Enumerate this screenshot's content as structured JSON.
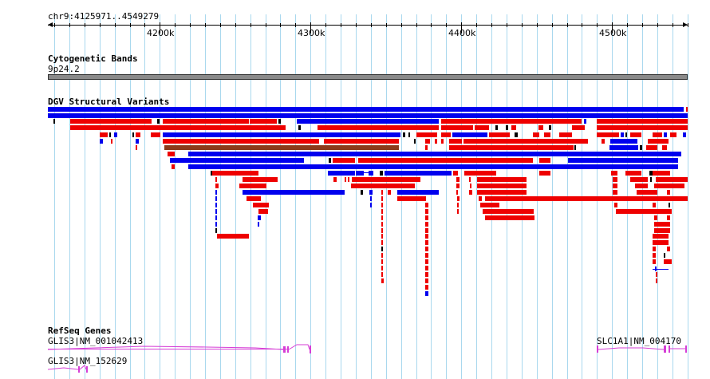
{
  "coord": "chr9:4125971..4549279",
  "ruler": {
    "ticks": [
      "4200k",
      "4300k",
      "4400k",
      "4500k"
    ]
  },
  "tracks": {
    "cytoband": {
      "title": "Cytogenetic Bands",
      "band": "9p24.2"
    },
    "dgv": {
      "title": "DGV Structural Variants"
    },
    "refseq": {
      "title": "RefSeq Genes",
      "genes": [
        "GLIS3|NM_001042413",
        "GLIS3|NM_152629",
        "SLC1A1|NM_004170"
      ]
    }
  },
  "colors": {
    "gain": "#0000ee",
    "loss": "#ee0000",
    "inversion": "#8b3a1a",
    "gene": "#d63ed6",
    "grid": "#a9d8ee",
    "band": "#8a8a8a"
  }
}
